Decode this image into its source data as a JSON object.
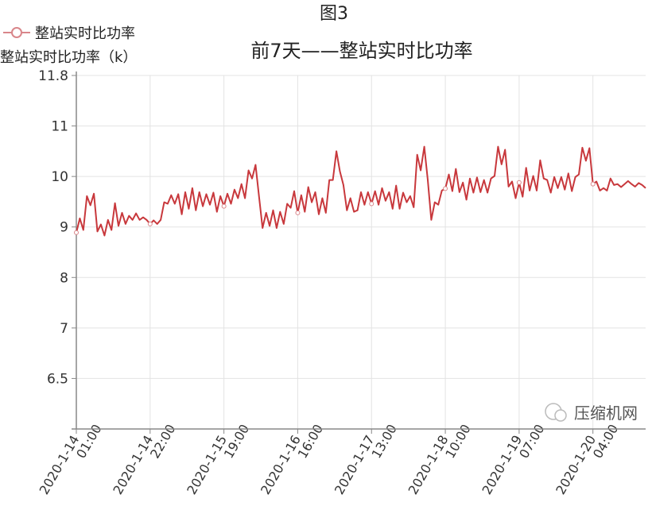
{
  "figure_label": "图3",
  "watermark": "压缩机网",
  "chart_data": {
    "type": "line",
    "title": "前7天——整站实时比功率",
    "ylabel": "整站实时比功率（k）",
    "xlabel": "",
    "legend": {
      "position": "top-left",
      "entries": [
        "整站实时比功率"
      ]
    },
    "grid": true,
    "line_color": "#c8383c",
    "y_tick_labels": [
      "6.5",
      "7",
      "8",
      "9",
      "10",
      "11",
      "11.8"
    ],
    "x_tick_labels": [
      [
        "2020-1-14",
        "01:00"
      ],
      [
        "2020-1-14",
        "22:00"
      ],
      [
        "2020-1-15",
        "19:00"
      ],
      [
        "2020-1-16",
        "16:00"
      ],
      [
        "2020-1-17",
        "13:00"
      ],
      [
        "2020-1-18",
        "10:00"
      ],
      [
        "2020-1-19",
        "07:00"
      ],
      [
        "2020-1-20",
        "04:00"
      ]
    ],
    "x_start": "2020-01-14 01:00",
    "x_interval": "1 hour",
    "series": [
      {
        "name": "整站实时比功率",
        "values": [
          8.89,
          9.17,
          8.94,
          9.61,
          9.43,
          9.66,
          8.91,
          9.05,
          8.83,
          9.14,
          8.94,
          9.47,
          9.02,
          9.28,
          9.06,
          9.22,
          9.14,
          9.27,
          9.14,
          9.19,
          9.14,
          9.06,
          9.13,
          9.06,
          9.14,
          9.49,
          9.46,
          9.63,
          9.46,
          9.65,
          9.25,
          9.69,
          9.36,
          9.77,
          9.33,
          9.69,
          9.41,
          9.65,
          9.44,
          9.68,
          9.3,
          9.61,
          9.41,
          9.66,
          9.46,
          9.74,
          9.57,
          9.85,
          9.57,
          10.12,
          9.96,
          10.23,
          9.6,
          8.98,
          9.28,
          9.02,
          9.33,
          8.98,
          9.3,
          9.06,
          9.46,
          9.38,
          9.71,
          9.28,
          9.63,
          9.3,
          9.79,
          9.49,
          9.69,
          9.25,
          9.57,
          9.28,
          9.93,
          9.93,
          10.5,
          10.1,
          9.83,
          9.33,
          9.57,
          9.3,
          9.33,
          9.69,
          9.44,
          9.69,
          9.46,
          9.71,
          9.44,
          9.77,
          9.52,
          9.69,
          9.36,
          9.82,
          9.36,
          9.68,
          9.49,
          9.61,
          9.39,
          10.43,
          10.12,
          10.59,
          9.93,
          9.14,
          9.49,
          9.44,
          9.72,
          9.76,
          10.04,
          9.71,
          10.15,
          9.69,
          9.88,
          9.54,
          9.96,
          9.68,
          9.98,
          9.69,
          9.93,
          9.68,
          9.96,
          10.01,
          10.59,
          10.24,
          10.53,
          9.8,
          9.9,
          9.57,
          9.88,
          9.6,
          10.17,
          9.72,
          10.01,
          9.72,
          10.32,
          9.96,
          9.93,
          9.68,
          9.99,
          9.77,
          9.99,
          9.74,
          10.06,
          9.71,
          9.99,
          10.04,
          10.57,
          10.31,
          10.56,
          9.85,
          9.9,
          9.72,
          9.77,
          9.72,
          9.96,
          9.83,
          9.85,
          9.79,
          9.85,
          9.91,
          9.85,
          9.8,
          9.87,
          9.83,
          9.77
        ]
      }
    ]
  }
}
